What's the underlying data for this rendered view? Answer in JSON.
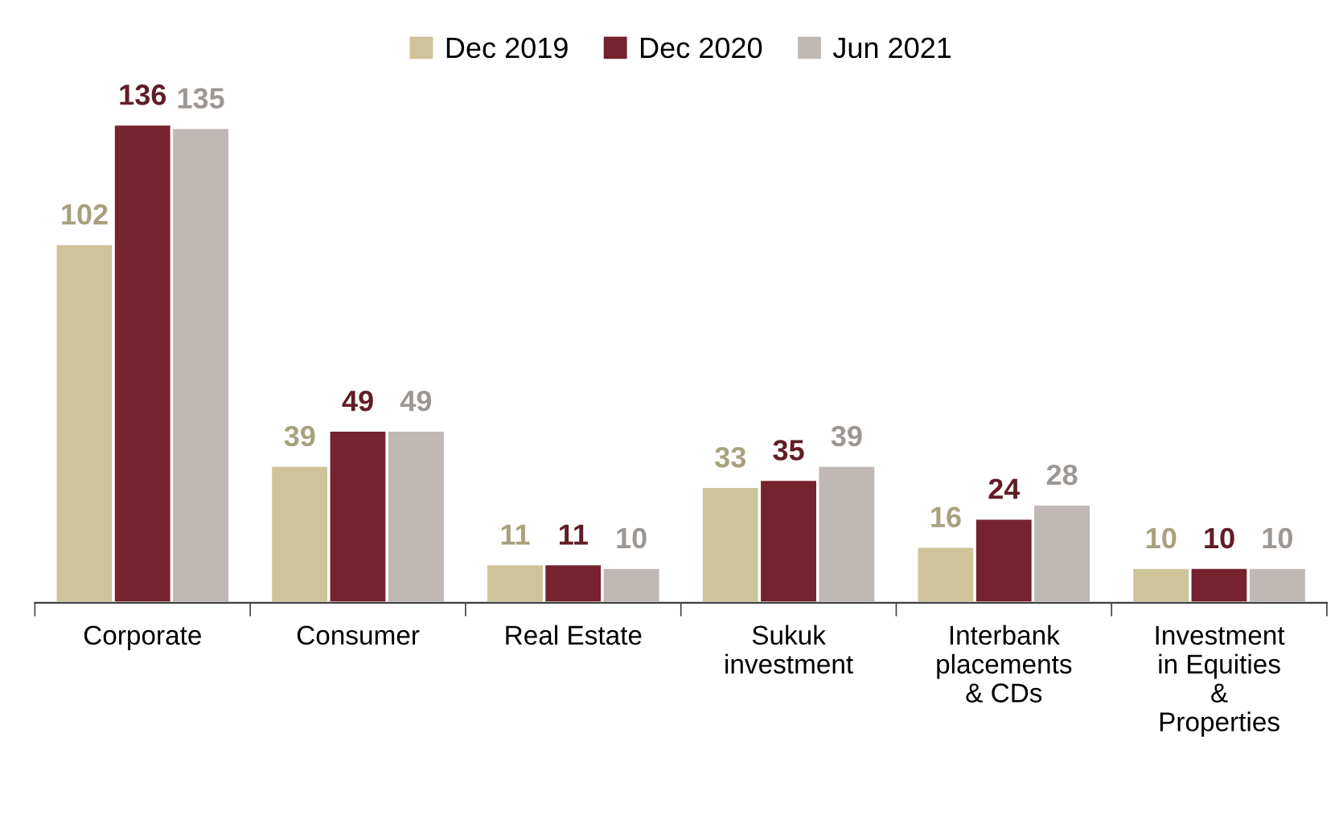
{
  "chart_data": {
    "type": "bar",
    "categories": [
      "Corporate",
      "Consumer",
      "Real Estate",
      "Sukuk\ninvestment",
      "Interbank\nplacements\n& CDs",
      "Investment\nin Equities\n&\nProperties"
    ],
    "series": [
      {
        "name": "Dec 2019",
        "color": "#cdc49a",
        "values": [
          102,
          39,
          11,
          33,
          16,
          10
        ]
      },
      {
        "name": "Dec 2020",
        "color": "#76232f",
        "values": [
          136,
          49,
          11,
          35,
          24,
          10
        ]
      },
      {
        "name": "Jun 2021",
        "color": "#bfb8b5",
        "values": [
          135,
          49,
          10,
          39,
          28,
          10
        ]
      }
    ],
    "data_labels": true,
    "legend": "top",
    "grid": false
  }
}
